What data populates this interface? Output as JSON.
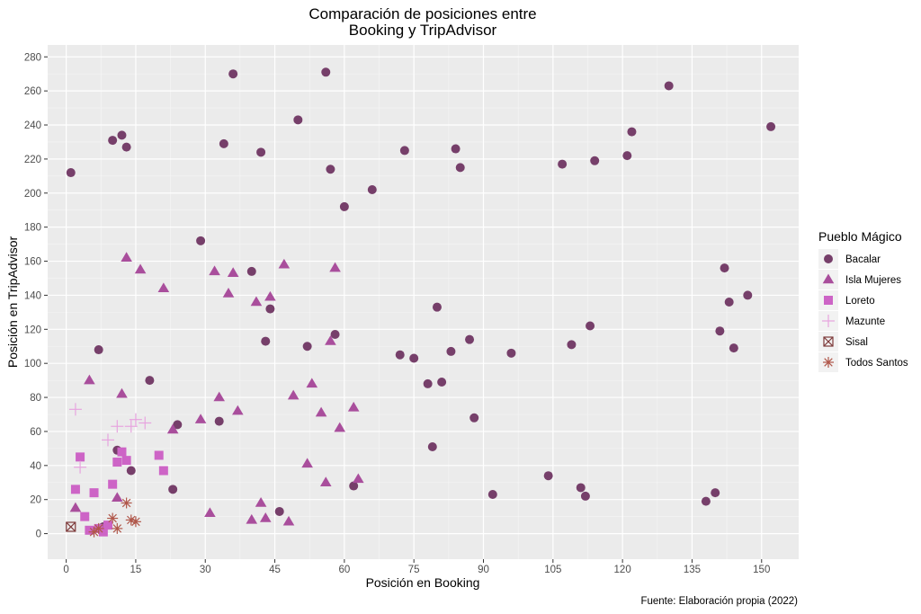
{
  "chart_data": {
    "type": "scatter",
    "title": [
      "Comparación de posiciones entre",
      "Booking y TripAdvisor"
    ],
    "xlabel": "Posición en Booking",
    "ylabel": "Posición en TripAdvisor",
    "xlim": [
      -4,
      158
    ],
    "ylim": [
      -15,
      287
    ],
    "xticks": [
      0,
      15,
      30,
      45,
      60,
      75,
      90,
      105,
      120,
      135,
      150
    ],
    "yticks": [
      0,
      20,
      40,
      60,
      80,
      100,
      120,
      140,
      160,
      180,
      200,
      220,
      240,
      260,
      280
    ],
    "grid": true,
    "legend_title": "Pueblo Mágico",
    "legend_position": "right",
    "caption": "Fuente: Elaboración propia (2022)",
    "series": [
      {
        "name": "Bacalar",
        "marker": "circle",
        "color": "#763f6a",
        "points": [
          [
            1,
            212
          ],
          [
            10,
            231
          ],
          [
            12,
            234
          ],
          [
            13,
            227
          ],
          [
            36,
            270
          ],
          [
            56,
            271
          ],
          [
            29,
            172
          ],
          [
            34,
            229
          ],
          [
            42,
            224
          ],
          [
            50,
            243
          ],
          [
            57,
            214
          ],
          [
            60,
            192
          ],
          [
            66,
            202
          ],
          [
            73,
            225
          ],
          [
            84,
            226
          ],
          [
            85,
            215
          ],
          [
            40,
            154
          ],
          [
            44,
            132
          ],
          [
            43,
            113
          ],
          [
            52,
            110
          ],
          [
            58,
            117
          ],
          [
            7,
            108
          ],
          [
            18,
            90
          ],
          [
            11,
            49
          ],
          [
            14,
            37
          ],
          [
            24,
            64
          ],
          [
            23,
            26
          ],
          [
            33,
            66
          ],
          [
            46,
            13
          ],
          [
            8,
            4
          ],
          [
            62,
            28
          ],
          [
            72,
            105
          ],
          [
            75,
            103
          ],
          [
            78,
            88
          ],
          [
            81,
            89
          ],
          [
            80,
            133
          ],
          [
            83,
            107
          ],
          [
            87,
            114
          ],
          [
            88,
            68
          ],
          [
            79,
            51
          ],
          [
            96,
            106
          ],
          [
            92,
            23
          ],
          [
            104,
            34
          ],
          [
            107,
            217
          ],
          [
            109,
            111
          ],
          [
            111,
            27
          ],
          [
            112,
            22
          ],
          [
            113,
            122
          ],
          [
            114,
            219
          ],
          [
            121,
            222
          ],
          [
            122,
            236
          ],
          [
            130,
            263
          ],
          [
            138,
            19
          ],
          [
            140,
            24
          ],
          [
            141,
            119
          ],
          [
            142,
            156
          ],
          [
            143,
            136
          ],
          [
            144,
            109
          ],
          [
            147,
            140
          ],
          [
            152,
            239
          ]
        ]
      },
      {
        "name": "Isla Mujeres",
        "marker": "triangle",
        "color": "#a94e9c",
        "points": [
          [
            2,
            15
          ],
          [
            5,
            90
          ],
          [
            12,
            82
          ],
          [
            11,
            21
          ],
          [
            13,
            162
          ],
          [
            16,
            155
          ],
          [
            21,
            144
          ],
          [
            23,
            61
          ],
          [
            29,
            67
          ],
          [
            31,
            12
          ],
          [
            32,
            154
          ],
          [
            33,
            80
          ],
          [
            35,
            141
          ],
          [
            36,
            153
          ],
          [
            37,
            72
          ],
          [
            40,
            8
          ],
          [
            41,
            136
          ],
          [
            42,
            18
          ],
          [
            43,
            9
          ],
          [
            44,
            139
          ],
          [
            47,
            158
          ],
          [
            48,
            7
          ],
          [
            49,
            81
          ],
          [
            52,
            41
          ],
          [
            53,
            88
          ],
          [
            55,
            71
          ],
          [
            56,
            30
          ],
          [
            57,
            113
          ],
          [
            58,
            156
          ],
          [
            59,
            62
          ],
          [
            62,
            74
          ],
          [
            63,
            32
          ]
        ]
      },
      {
        "name": "Loreto",
        "marker": "square",
        "color": "#cd64c6",
        "points": [
          [
            2,
            26
          ],
          [
            3,
            45
          ],
          [
            4,
            10
          ],
          [
            5,
            2
          ],
          [
            6,
            24
          ],
          [
            7,
            3
          ],
          [
            8,
            1
          ],
          [
            9,
            5
          ],
          [
            10,
            29
          ],
          [
            11,
            42
          ],
          [
            12,
            48
          ],
          [
            13,
            43
          ],
          [
            20,
            46
          ],
          [
            21,
            37
          ]
        ]
      },
      {
        "name": "Mazunte",
        "marker": "plus",
        "color": "#e7a4df",
        "points": [
          [
            2,
            73
          ],
          [
            3,
            39
          ],
          [
            9,
            55
          ],
          [
            11,
            63
          ],
          [
            14,
            63
          ],
          [
            15,
            67
          ],
          [
            17,
            65
          ]
        ]
      },
      {
        "name": "Sisal",
        "marker": "boxx",
        "color": "#7d3a3a",
        "points": [
          [
            1,
            4
          ]
        ]
      },
      {
        "name": "Todos Santos",
        "marker": "asterisk",
        "color": "#b0574a",
        "points": [
          [
            6,
            1
          ],
          [
            7,
            3
          ],
          [
            10,
            9
          ],
          [
            11,
            3
          ],
          [
            13,
            18
          ],
          [
            14,
            8
          ],
          [
            15,
            7
          ]
        ]
      }
    ]
  }
}
